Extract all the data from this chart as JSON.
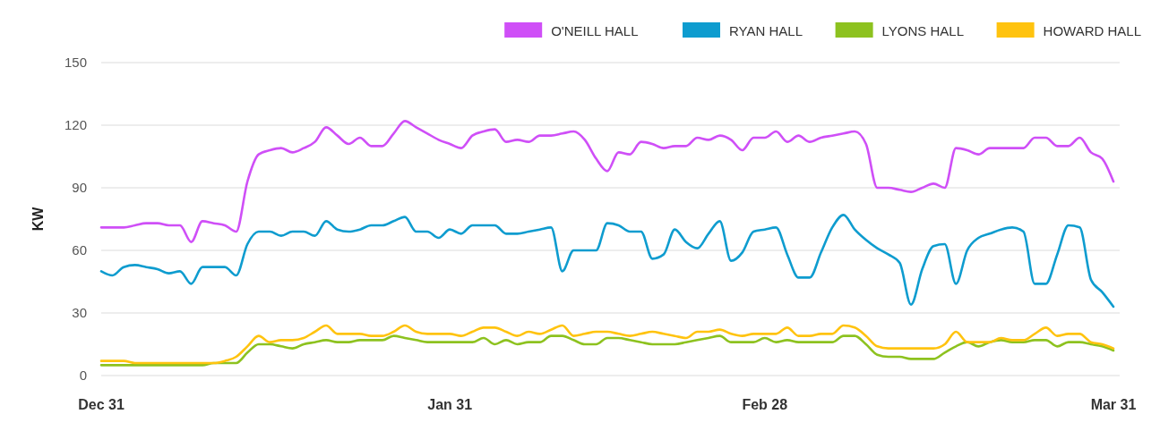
{
  "chart_data": {
    "type": "line",
    "ylabel": "KW",
    "categories": [
      "Dec 31",
      null,
      null,
      null,
      null,
      null,
      null,
      null,
      null,
      null,
      null,
      null,
      null,
      null,
      null,
      null,
      null,
      null,
      null,
      null,
      null,
      null,
      null,
      null,
      null,
      null,
      null,
      null,
      null,
      null,
      null,
      "Jan 31",
      null,
      null,
      null,
      null,
      null,
      null,
      null,
      null,
      null,
      null,
      null,
      null,
      null,
      null,
      null,
      null,
      null,
      null,
      null,
      null,
      null,
      null,
      null,
      null,
      null,
      null,
      null,
      "Feb 28",
      null,
      null,
      null,
      null,
      null,
      null,
      null,
      null,
      null,
      null,
      null,
      null,
      null,
      null,
      null,
      null,
      null,
      null,
      null,
      null,
      null,
      null,
      null,
      null,
      null,
      null,
      null,
      null,
      null,
      null,
      "Mar 31"
    ],
    "ylim": [
      0,
      150
    ],
    "yticks": [
      0,
      30,
      60,
      90,
      120,
      150
    ],
    "grid": "y",
    "legend": "top right",
    "marker": "none",
    "line_style": "solid",
    "series": [
      {
        "name": "O'NEILL HALL",
        "color": "#cf4ff7",
        "values": [
          71,
          71,
          71,
          72,
          73,
          73,
          72,
          72,
          64,
          74,
          73,
          72,
          69,
          93,
          106,
          108,
          109,
          107,
          109,
          112,
          119,
          115,
          111,
          114,
          110,
          110,
          116,
          122,
          119,
          116,
          113,
          111,
          109,
          115,
          117,
          118,
          112,
          113,
          112,
          115,
          115,
          116,
          117,
          113,
          104,
          98,
          107,
          106,
          112,
          111,
          109,
          110,
          110,
          114,
          113,
          115,
          113,
          108,
          114,
          114,
          117,
          112,
          115,
          112,
          114,
          115,
          116,
          117,
          111,
          90,
          90,
          89,
          88,
          90,
          92,
          90,
          109,
          108,
          106,
          109,
          109,
          109,
          109,
          114,
          114,
          110,
          110,
          114,
          107,
          104,
          93
        ]
      },
      {
        "name": "RYAN HALL",
        "color": "#0e9ccf",
        "values": [
          50,
          48,
          52,
          53,
          52,
          51,
          49,
          50,
          44,
          52,
          52,
          52,
          48,
          63,
          69,
          69,
          67,
          69,
          69,
          67,
          74,
          70,
          69,
          70,
          72,
          72,
          74,
          76,
          69,
          69,
          66,
          70,
          68,
          72,
          72,
          72,
          68,
          68,
          69,
          70,
          71,
          50,
          60,
          60,
          60,
          73,
          72,
          69,
          69,
          56,
          58,
          70,
          64,
          61,
          68,
          74,
          55,
          59,
          69,
          70,
          71,
          58,
          47,
          47,
          59,
          71,
          77,
          70,
          65,
          61,
          58,
          54,
          34,
          51,
          62,
          63,
          44,
          60,
          66,
          68,
          70,
          71,
          69,
          44,
          44,
          58,
          72,
          71,
          46,
          40,
          33
        ]
      },
      {
        "name": "LYONS HALL",
        "color": "#8dc21f",
        "values": [
          5,
          5,
          5,
          5,
          5,
          5,
          5,
          5,
          5,
          5,
          6,
          6,
          6,
          11,
          15,
          15,
          14,
          13,
          15,
          16,
          17,
          16,
          16,
          17,
          17,
          17,
          19,
          18,
          17,
          16,
          16,
          16,
          16,
          16,
          18,
          15,
          17,
          15,
          16,
          16,
          19,
          19,
          17,
          15,
          15,
          18,
          18,
          17,
          16,
          15,
          15,
          15,
          16,
          17,
          18,
          19,
          16,
          16,
          16,
          18,
          16,
          17,
          16,
          16,
          16,
          16,
          19,
          19,
          15,
          10,
          9,
          9,
          8,
          8,
          8,
          11,
          14,
          16,
          14,
          16,
          17,
          16,
          16,
          17,
          17,
          14,
          16,
          16,
          15,
          14,
          12
        ]
      },
      {
        "name": "HOWARD HALL",
        "color": "#ffc30f",
        "values": [
          7,
          7,
          7,
          6,
          6,
          6,
          6,
          6,
          6,
          6,
          6,
          7,
          9,
          14,
          19,
          16,
          17,
          17,
          18,
          21,
          24,
          20,
          20,
          20,
          19,
          19,
          21,
          24,
          21,
          20,
          20,
          20,
          19,
          21,
          23,
          23,
          21,
          19,
          21,
          20,
          22,
          24,
          19,
          20,
          21,
          21,
          20,
          19,
          20,
          21,
          20,
          19,
          18,
          21,
          21,
          22,
          20,
          19,
          20,
          20,
          20,
          23,
          19,
          19,
          20,
          20,
          24,
          23,
          19,
          14,
          13,
          13,
          13,
          13,
          13,
          15,
          21,
          16,
          16,
          16,
          18,
          17,
          17,
          20,
          23,
          19,
          20,
          20,
          16,
          15,
          13
        ]
      }
    ]
  }
}
